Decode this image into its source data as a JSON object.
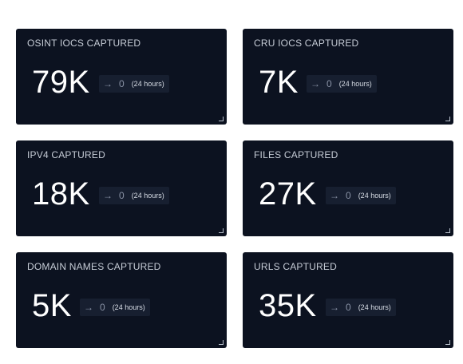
{
  "cards": [
    {
      "title": "OSINT IOCS CAPTURED",
      "value": "79K",
      "arrow": "→",
      "delta": "0",
      "period": "(24 hours)"
    },
    {
      "title": "CRU IOCS CAPTURED",
      "value": "7K",
      "arrow": "→",
      "delta": "0",
      "period": "(24 hours)"
    },
    {
      "title": "IPV4 CAPTURED",
      "value": "18K",
      "arrow": "→",
      "delta": "0",
      "period": "(24 hours)"
    },
    {
      "title": "FILES CAPTURED",
      "value": "27K",
      "arrow": "→",
      "delta": "0",
      "period": "(24 hours)"
    },
    {
      "title": "DOMAIN NAMES CAPTURED",
      "value": "5K",
      "arrow": "→",
      "delta": "0",
      "period": "(24 hours)"
    },
    {
      "title": "URLS CAPTURED",
      "value": "35K",
      "arrow": "→",
      "delta": "0",
      "period": "(24 hours)"
    }
  ],
  "icons": {
    "trend": "arrow-right-icon",
    "resize": "resize-handle-icon"
  },
  "colors": {
    "card_background": "#0c1220",
    "trend_background": "#171f30",
    "page_background": "#ffffff"
  }
}
